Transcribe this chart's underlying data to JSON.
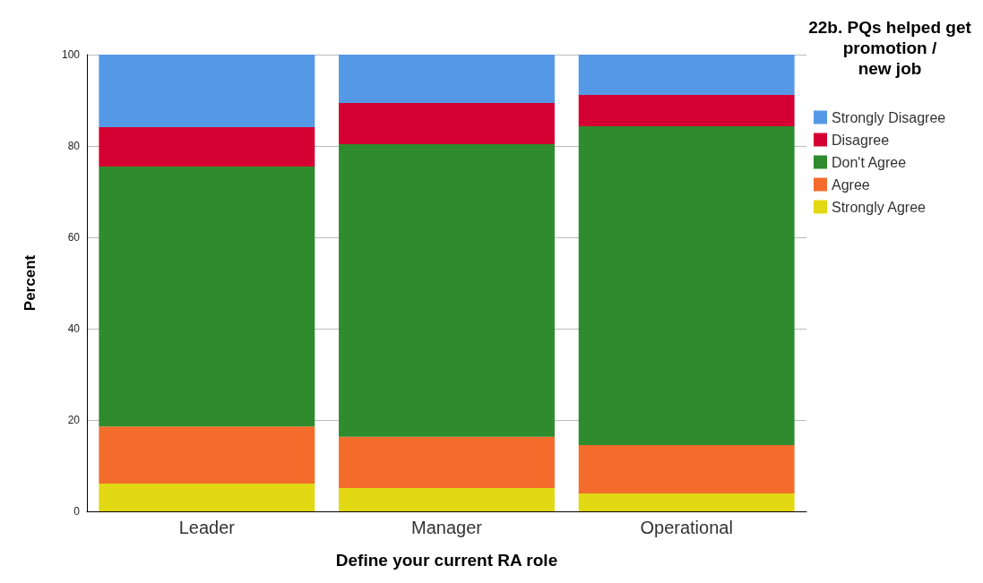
{
  "chart_data": {
    "type": "bar",
    "stacked": true,
    "xlabel": "Define your current RA role",
    "ylabel": "Percent",
    "legend_title": "22b. PQs helped get\npromotion /\nnew job",
    "categories": [
      "Leader",
      "Manager",
      "Operational"
    ],
    "series": [
      {
        "name": "Strongly Agree",
        "color": "#e2d813",
        "values": [
          6.1,
          5.1,
          3.9
        ]
      },
      {
        "name": "Agree",
        "color": "#f36c2c",
        "values": [
          12.5,
          11.2,
          10.6
        ]
      },
      {
        "name": "Don't Agree",
        "color": "#2e8b2e",
        "values": [
          56.9,
          64.1,
          69.8
        ]
      },
      {
        "name": "Disagree",
        "color": "#d50032",
        "values": [
          8.6,
          9.0,
          6.9
        ]
      },
      {
        "name": "Strongly Disagree",
        "color": "#5599e6",
        "values": [
          15.9,
          10.6,
          8.8
        ]
      }
    ],
    "ylim": [
      0,
      100
    ],
    "yticks": [
      0,
      20,
      40,
      60,
      80,
      100
    ],
    "grid": "y",
    "legend": "right"
  }
}
